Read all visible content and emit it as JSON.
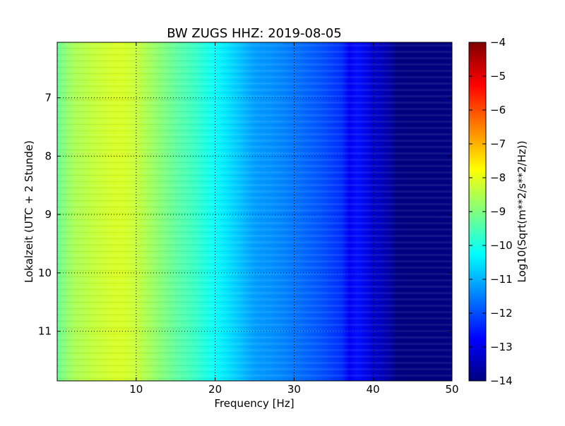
{
  "chart_data": {
    "type": "heatmap",
    "title": "BW ZUGS HHZ: 2019-08-05",
    "xlabel": "Frequency [Hz]",
    "ylabel": "Lokalzeit (UTC + 2 Stunde)",
    "xlim": [
      0,
      50
    ],
    "ylim": [
      11.85,
      6.05
    ],
    "y_inverted": true,
    "xticks": [
      10,
      20,
      30,
      40,
      50
    ],
    "yticks": [
      7,
      8,
      9,
      10,
      11
    ],
    "grid": true,
    "colormap": "jet",
    "colorbar": {
      "label": "Log10(Sqrt(m**2/s**2/Hz))",
      "min": -14,
      "max": -4,
      "ticks": [
        -4,
        -5,
        -6,
        -7,
        -8,
        -9,
        -10,
        -11,
        -12,
        -13,
        -14
      ]
    },
    "spectrum_profile": {
      "frequency_hz": [
        0,
        2,
        5,
        8,
        10,
        12,
        15,
        17,
        20,
        22,
        25,
        28,
        30,
        33,
        36,
        37,
        38,
        40,
        42,
        43,
        50
      ],
      "log10_amplitude": [
        -9.2,
        -8.6,
        -8.3,
        -8.1,
        -8.3,
        -8.7,
        -9.3,
        -9.6,
        -10.2,
        -10.6,
        -11.2,
        -11.4,
        -11.6,
        -11.9,
        -12.3,
        -12.9,
        -12.6,
        -13.2,
        -13.6,
        -14.0,
        -14.0
      ]
    }
  }
}
